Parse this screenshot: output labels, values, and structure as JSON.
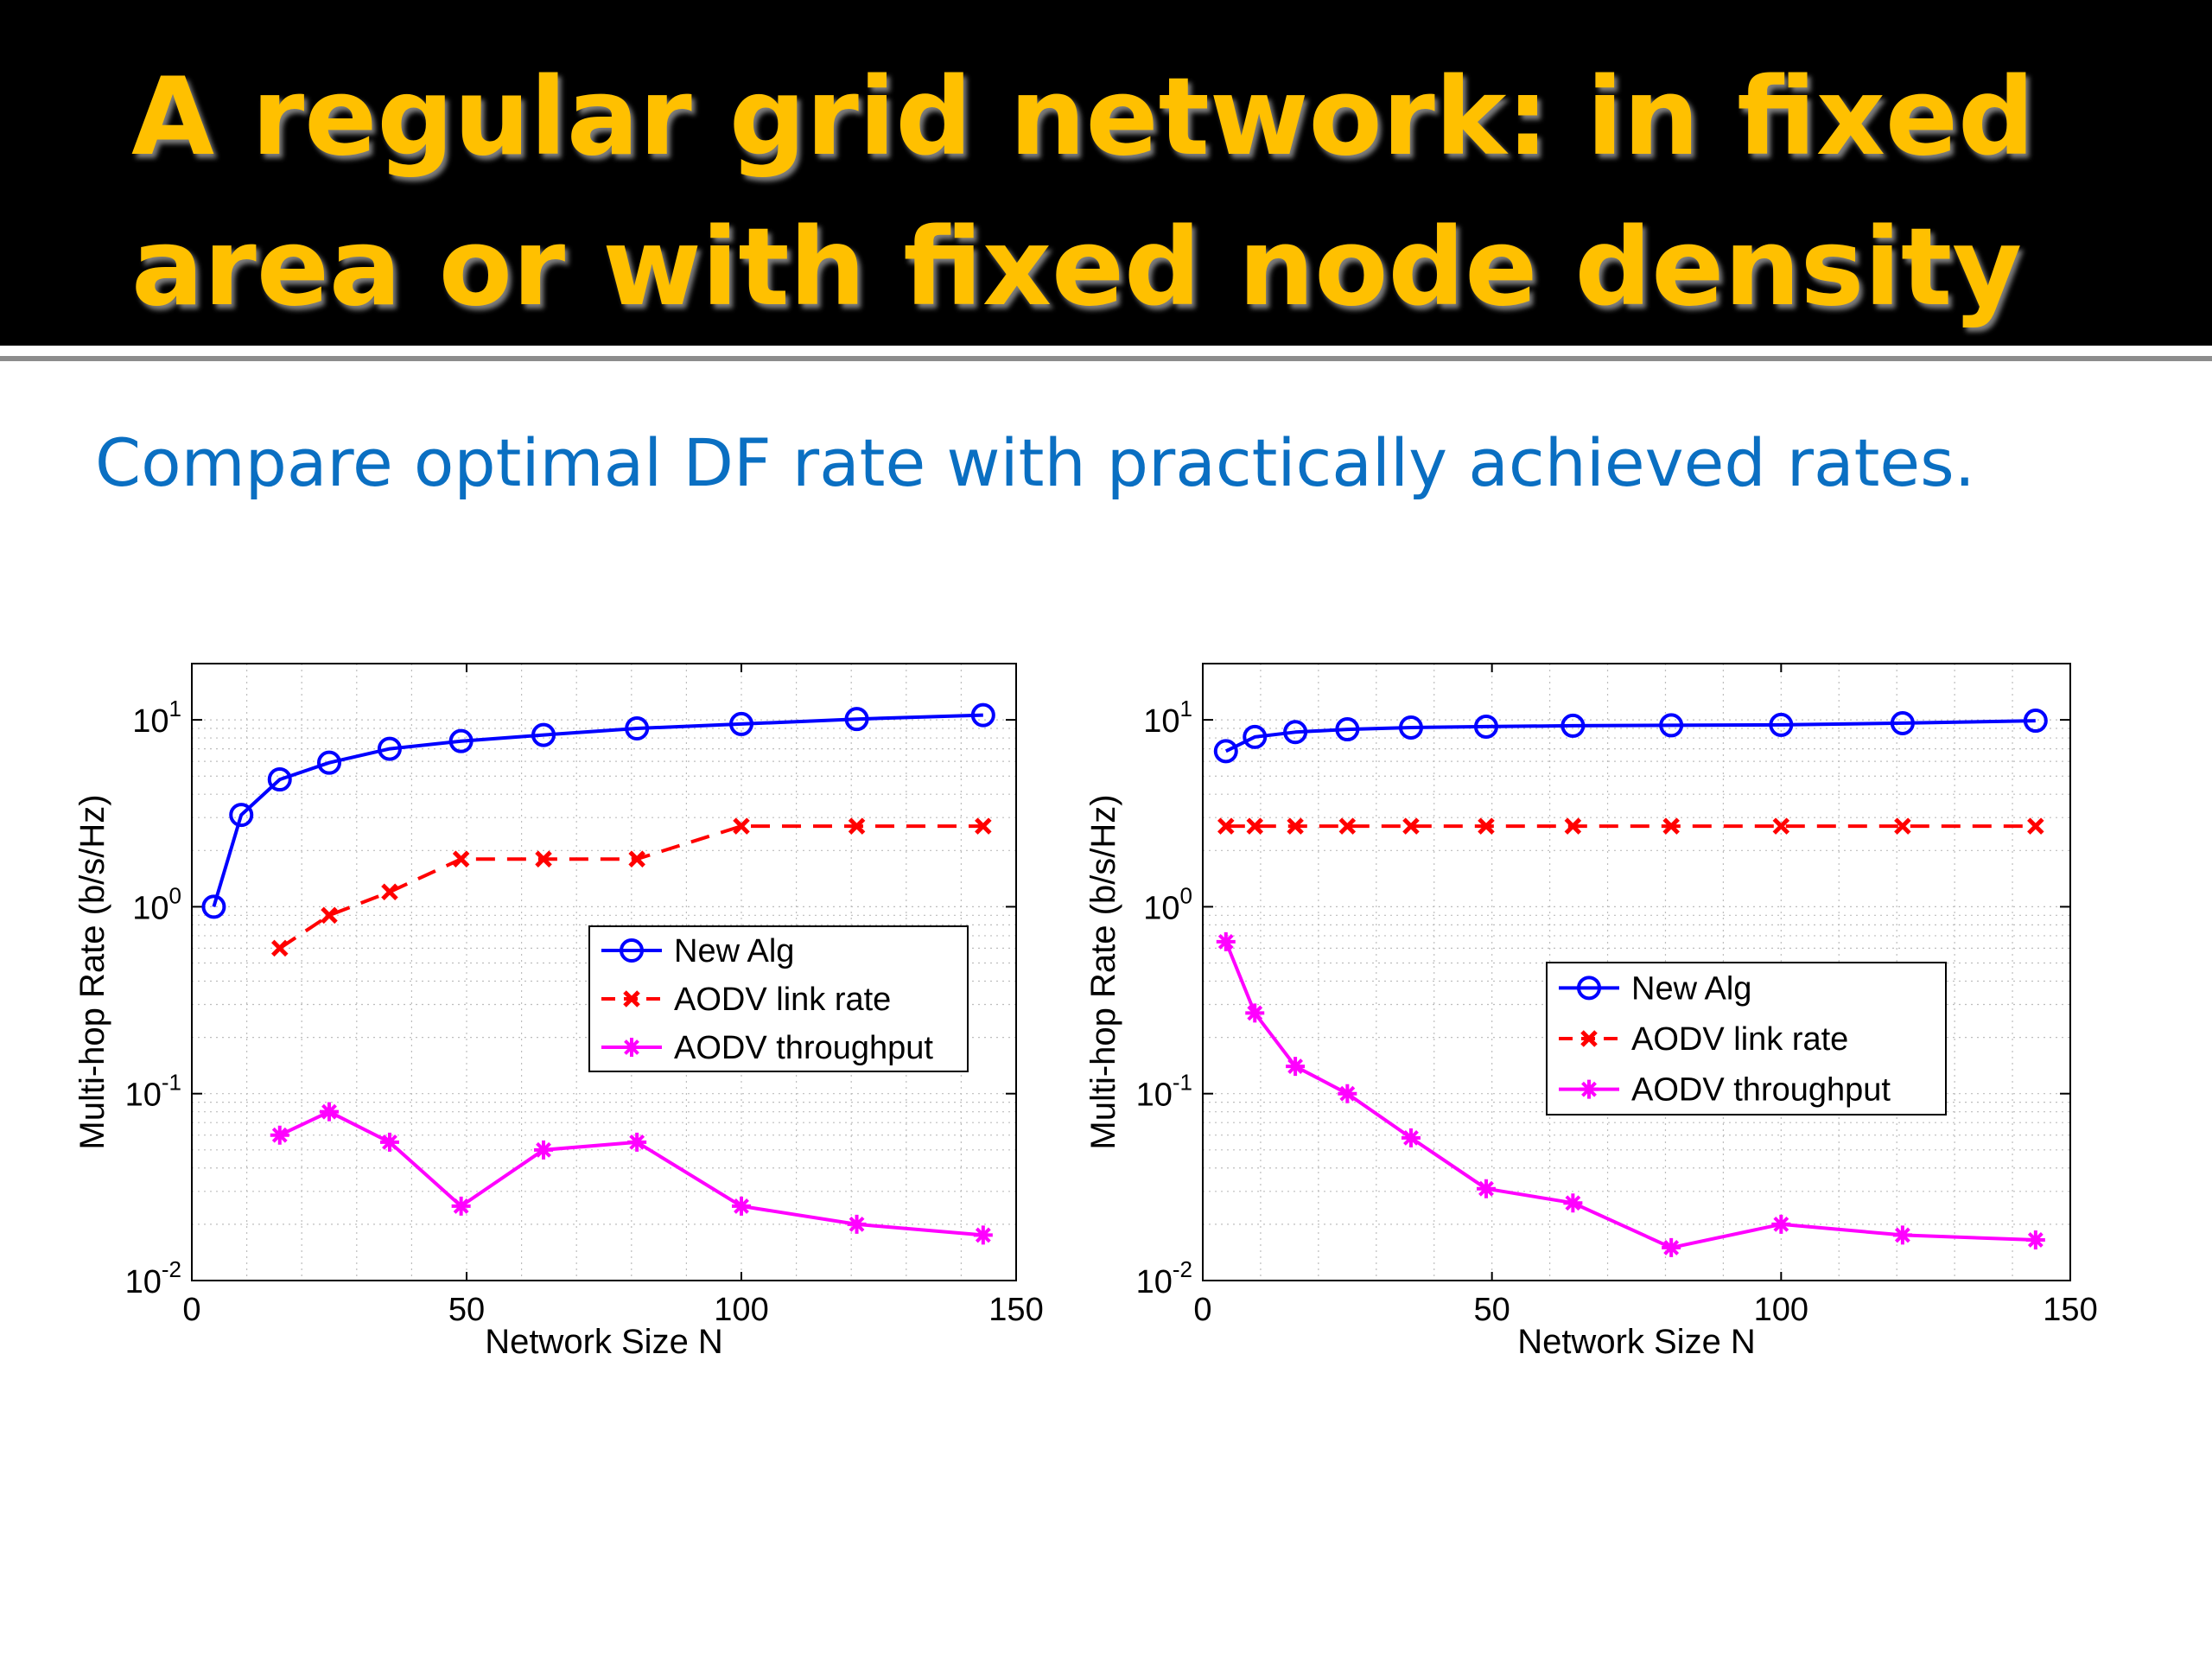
{
  "slide": {
    "title_lines": [
      "A regular grid network: in fixed",
      "area or with fixed node density"
    ],
    "subtitle": "Compare optimal DF rate with practically achieved rates."
  },
  "colors": {
    "title": "#FFC000",
    "subtitle": "#0A6FC2",
    "new_alg": "#0000FF",
    "aodv_link": "#FF0000",
    "aodv_throughput": "#FF00FF"
  },
  "chart_data": [
    {
      "type": "line",
      "title": "",
      "xlabel": "Network Size N",
      "ylabel": "Multi-hop Rate (b/s/Hz)",
      "xlim": [
        0,
        150
      ],
      "ylim": [
        0.01,
        20
      ],
      "yscale": "log",
      "grid": true,
      "xticks": [
        "0",
        "50",
        "100",
        "150"
      ],
      "yticks": [
        {
          "base": "10",
          "exp": "-2"
        },
        {
          "base": "10",
          "exp": "-1"
        },
        {
          "base": "10",
          "exp": "0"
        },
        {
          "base": "10",
          "exp": "1"
        }
      ],
      "legend_position": "center-right",
      "series": [
        {
          "name": "New Alg",
          "marker": "circle",
          "line": "solid",
          "x": [
            4,
            9,
            16,
            25,
            36,
            49,
            64,
            81,
            100,
            121,
            144
          ],
          "y": [
            1.0,
            3.1,
            4.8,
            5.9,
            7.0,
            7.7,
            8.3,
            9.0,
            9.5,
            10.1,
            10.6
          ]
        },
        {
          "name": "AODV link rate",
          "marker": "x",
          "line": "dashed",
          "x": [
            16,
            25,
            36,
            49,
            64,
            81,
            100,
            121,
            144
          ],
          "y": [
            0.6,
            0.9,
            1.2,
            1.8,
            1.8,
            1.8,
            2.7,
            2.7,
            2.7
          ]
        },
        {
          "name": "AODV throughput",
          "marker": "star",
          "line": "solid",
          "x": [
            16,
            25,
            36,
            49,
            64,
            81,
            100,
            121,
            144
          ],
          "y": [
            0.06,
            0.08,
            0.055,
            0.025,
            0.05,
            0.055,
            0.025,
            0.02,
            0.0175
          ]
        }
      ]
    },
    {
      "type": "line",
      "title": "",
      "xlabel": "Network Size N",
      "ylabel": "Multi-hop Rate (b/s/Hz)",
      "xlim": [
        0,
        150
      ],
      "ylim": [
        0.01,
        20
      ],
      "yscale": "log",
      "grid": true,
      "xticks": [
        "0",
        "50",
        "100",
        "150"
      ],
      "yticks": [
        {
          "base": "10",
          "exp": "-2"
        },
        {
          "base": "10",
          "exp": "-1"
        },
        {
          "base": "10",
          "exp": "0"
        },
        {
          "base": "10",
          "exp": "1"
        }
      ],
      "legend_position": "center-right",
      "series": [
        {
          "name": "New Alg",
          "marker": "circle",
          "line": "solid",
          "x": [
            4,
            9,
            16,
            25,
            36,
            49,
            64,
            81,
            100,
            121,
            144
          ],
          "y": [
            6.8,
            8.1,
            8.6,
            8.9,
            9.1,
            9.2,
            9.3,
            9.35,
            9.4,
            9.6,
            9.9
          ]
        },
        {
          "name": "AODV link rate",
          "marker": "x",
          "line": "dashed",
          "x": [
            4,
            9,
            16,
            25,
            36,
            49,
            64,
            81,
            100,
            121,
            144
          ],
          "y": [
            2.7,
            2.7,
            2.7,
            2.7,
            2.7,
            2.7,
            2.7,
            2.7,
            2.7,
            2.7,
            2.7
          ]
        },
        {
          "name": "AODV throughput",
          "marker": "star",
          "line": "solid",
          "x": [
            4,
            9,
            16,
            25,
            36,
            49,
            64,
            81,
            100,
            121,
            144
          ],
          "y": [
            0.65,
            0.27,
            0.14,
            0.1,
            0.058,
            0.031,
            0.026,
            0.015,
            0.02,
            0.0175,
            0.0165
          ]
        }
      ]
    }
  ]
}
